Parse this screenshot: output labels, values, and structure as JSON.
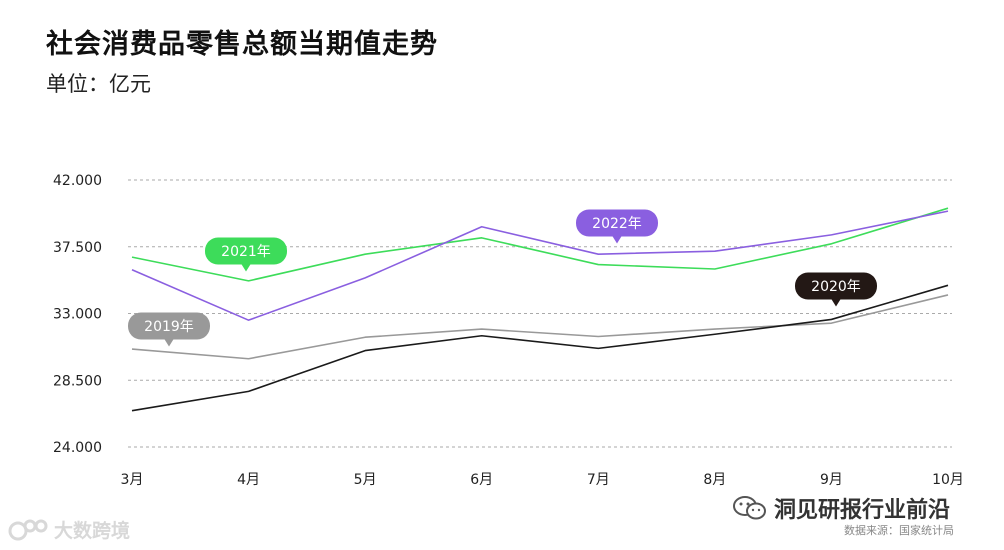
{
  "title": "社会消费品零售总额当期值走势",
  "unit_label": "单位：亿元",
  "source": "数据来源：国家统计局",
  "watermarks": {
    "left_text": "大数跨境",
    "right_text": "洞见研报行业前沿"
  },
  "colors": {
    "2019": "#999999",
    "2020": "#1a1a1a",
    "2021": "#3ddc5a",
    "2022": "#8a5fe0",
    "bubble_2020": "#231815",
    "grid": "#aaaaaa"
  },
  "chart_data": {
    "type": "line",
    "title": "社会消费品零售总额当期值走势",
    "ylabel": "单位：亿元",
    "xlabel": "",
    "categories": [
      "3月",
      "4月",
      "5月",
      "6月",
      "7月",
      "8月",
      "9月",
      "10月"
    ],
    "ylim": [
      24000,
      42000
    ],
    "yticks": [
      24000,
      28500,
      33000,
      37500,
      42000
    ],
    "ytick_labels": [
      "24.000",
      "28.500",
      "33.000",
      "37.500",
      "42.000"
    ],
    "grid": true,
    "series": [
      {
        "name": "2019年",
        "values": [
          30600,
          29950,
          31400,
          31950,
          31450,
          31950,
          32350,
          34250
        ]
      },
      {
        "name": "2020年",
        "values": [
          26450,
          27750,
          30500,
          31500,
          30650,
          31600,
          32600,
          34900
        ]
      },
      {
        "name": "2021年",
        "values": [
          36800,
          35200,
          37000,
          38100,
          36300,
          36000,
          37700,
          40100
        ]
      },
      {
        "name": "2022年",
        "values": [
          35950,
          32550,
          35400,
          38850,
          37000,
          37200,
          38300,
          39900
        ]
      }
    ]
  }
}
